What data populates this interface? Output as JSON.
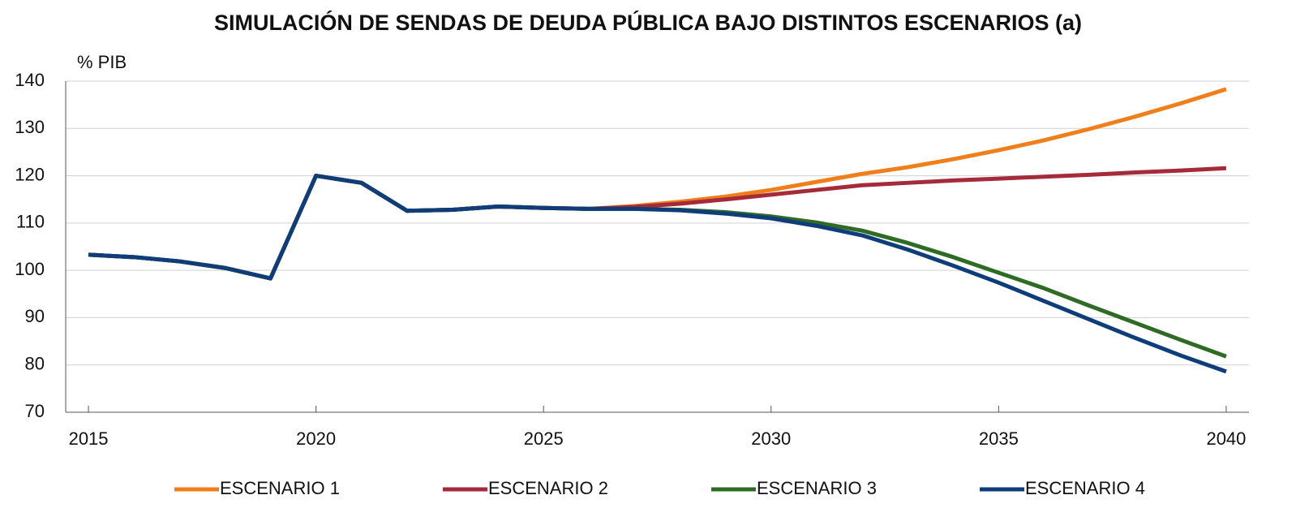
{
  "chart_data": {
    "type": "line",
    "title": "SIMULACIÓN DE SENDAS DE DEUDA PÚBLICA BAJO DISTINTOS ESCENARIOS (a)",
    "y_label": "% PIB",
    "x": [
      2015,
      2016,
      2017,
      2018,
      2019,
      2020,
      2021,
      2022,
      2023,
      2024,
      2025,
      2026,
      2027,
      2028,
      2029,
      2030,
      2031,
      2032,
      2033,
      2034,
      2035,
      2036,
      2037,
      2038,
      2039,
      2040
    ],
    "xlim": [
      2014.5,
      2040.5
    ],
    "xticks": [
      2015,
      2020,
      2025,
      2030,
      2035,
      2040
    ],
    "ylim": [
      70,
      140
    ],
    "yticks": [
      70,
      80,
      90,
      100,
      110,
      120,
      130,
      140
    ],
    "grid": true,
    "legend": "bottom",
    "series": [
      {
        "name": "ESCENARIO 1",
        "color": "#f07f1b",
        "values": [
          103.3,
          102.8,
          101.9,
          100.5,
          98.3,
          120,
          118.5,
          112.6,
          112.8,
          113.5,
          113.2,
          113.0,
          113.6,
          114.5,
          115.6,
          117.0,
          118.7,
          120.4,
          121.8,
          123.5,
          125.4,
          127.5,
          129.9,
          132.5,
          135.3,
          138.3
        ]
      },
      {
        "name": "ESCENARIO 2",
        "color": "#a52a3a",
        "values": [
          103.3,
          102.8,
          101.9,
          100.5,
          98.3,
          120,
          118.5,
          112.6,
          112.8,
          113.5,
          113.2,
          113.0,
          113.4,
          114.1,
          115.0,
          116.0,
          117.0,
          118.0,
          118.5,
          119.0,
          119.4,
          119.8,
          120.2,
          120.7,
          121.1,
          121.6
        ]
      },
      {
        "name": "ESCENARIO 3",
        "color": "#2e6b25",
        "values": [
          103.3,
          102.8,
          101.9,
          100.5,
          98.3,
          120,
          118.5,
          112.6,
          112.8,
          113.5,
          113.2,
          113.0,
          113.0,
          112.8,
          112.3,
          111.4,
          110.1,
          108.4,
          105.8,
          102.8,
          99.5,
          96.2,
          92.5,
          88.9,
          85.3,
          81.8
        ]
      },
      {
        "name": "ESCENARIO 4",
        "color": "#0e3d7a",
        "values": [
          103.3,
          102.8,
          101.9,
          100.5,
          98.3,
          120,
          118.5,
          112.6,
          112.8,
          113.5,
          113.2,
          113.0,
          113.0,
          112.7,
          112.0,
          111.0,
          109.4,
          107.4,
          104.4,
          101.0,
          97.4,
          93.5,
          89.6,
          85.7,
          82.0,
          78.6
        ]
      }
    ]
  }
}
